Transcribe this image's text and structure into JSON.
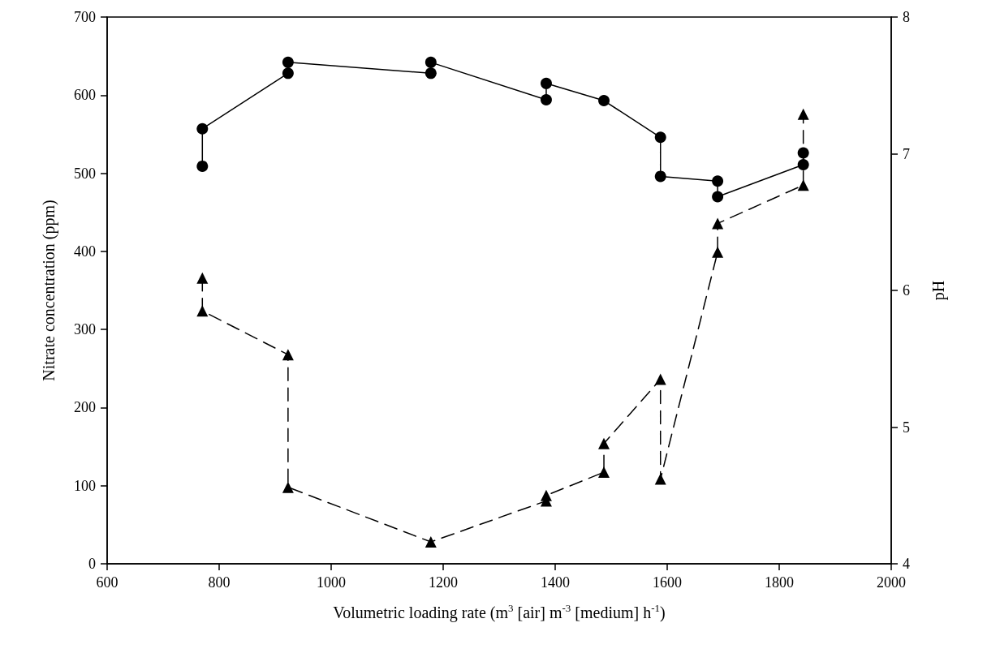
{
  "chart_data": {
    "type": "line",
    "xlabel": "Volumetric loading rate (m$^{3}$ [air] m$^{-3}$ [medium] h$^{-1}$)",
    "ylabel": "Nitrate concentration (ppm)",
    "y2label": "pH",
    "xlim": [
      600,
      2000
    ],
    "xticks": [
      600,
      800,
      1000,
      1200,
      1400,
      1600,
      1800,
      2000
    ],
    "ylim": [
      0,
      700
    ],
    "yticks": [
      0,
      100,
      200,
      300,
      400,
      500,
      600,
      700
    ],
    "y2lim": [
      4,
      8
    ],
    "y2ticks": [
      4,
      5,
      6,
      7,
      8
    ],
    "grid": false,
    "series": [
      {
        "color": "#000000",
        "marker": "circle",
        "line_style": "solid",
        "x": [
          770,
          770,
          923,
          923,
          1178,
          1178,
          1384,
          1384,
          1487,
          1588,
          1588,
          1690,
          1690,
          1843,
          1843
        ],
        "values": [
          509,
          557,
          628,
          642,
          628,
          642,
          594,
          615,
          593,
          546,
          496,
          490,
          470,
          511,
          526
        ]
      },
      {
        "color": "#000000",
        "marker": "triangle",
        "line_style": "dashed",
        "axis": "y2",
        "x": [
          770,
          770,
          923,
          923,
          1178,
          1384,
          1384,
          1487,
          1487,
          1588,
          1588,
          1690,
          1690,
          1843,
          1843
        ],
        "values": [
          6.09,
          5.85,
          5.53,
          4.56,
          4.16,
          4.46,
          4.5,
          4.67,
          4.88,
          5.35,
          4.62,
          6.28,
          6.49,
          6.77,
          7.29
        ]
      }
    ]
  }
}
